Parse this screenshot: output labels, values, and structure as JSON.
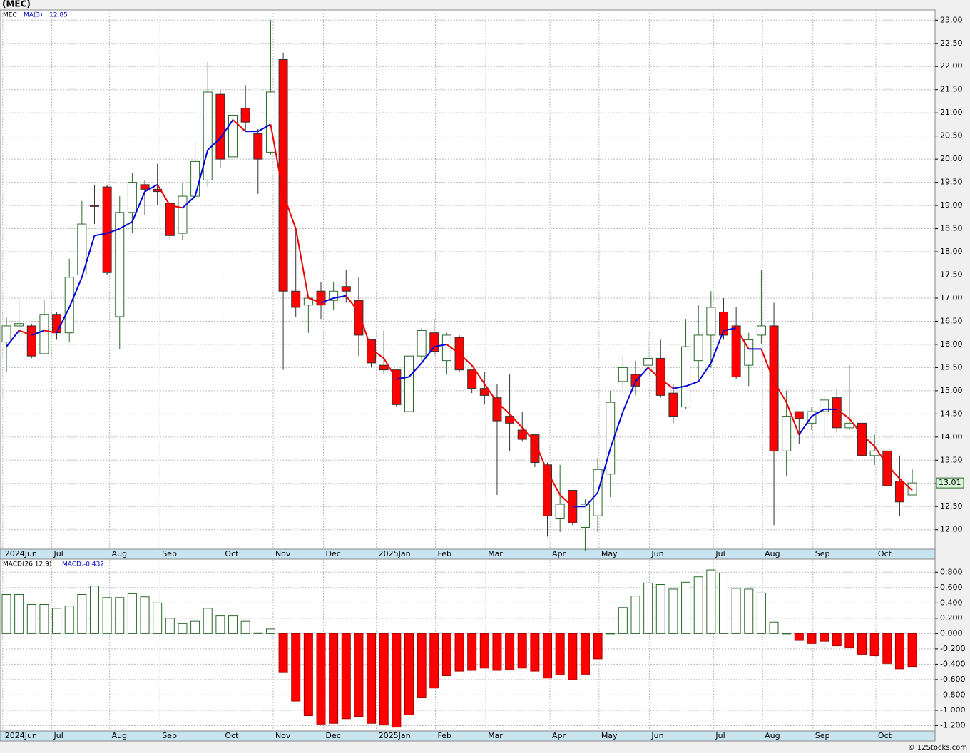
{
  "chart_data": [
    {
      "type": "candlestick",
      "title": "(MEC)",
      "symbol": "MEC",
      "ma_label": "MA(3)",
      "ma_last": "12.85",
      "last_price": "13.01",
      "up_color": "#ffffff",
      "up_edge": "#2a6a2a",
      "down_color": "#ff0000",
      "ma_up_color": "#0000dd",
      "ma_down_color": "#ee0000",
      "open": [
        16.05,
        16.4,
        16.4,
        15.8,
        16.65,
        16.25,
        17.5,
        19.0,
        19.4,
        16.6,
        18.85,
        19.45,
        19.35,
        19.05,
        18.4,
        19.2,
        19.55,
        21.4,
        20.05,
        21.1,
        20.55,
        20.15,
        22.15,
        17.15,
        16.85,
        17.15,
        16.95,
        17.25,
        16.95,
        16.1,
        15.55,
        15.45,
        14.55,
        15.75,
        16.25,
        15.65,
        16.15,
        15.45,
        15.05,
        14.85,
        14.45,
        14.15,
        14.05,
        13.4,
        12.25,
        12.85,
        12.05,
        12.3,
        13.2,
        15.2,
        15.35,
        15.55,
        15.7,
        14.95,
        14.65,
        15.65,
        16.2,
        16.7,
        16.4,
        15.55,
        16.2,
        16.4,
        13.7,
        14.55,
        14.3,
        14.55,
        14.85,
        14.2,
        14.3,
        13.6,
        13.7,
        13.05,
        12.75
      ],
      "high": [
        16.6,
        17.0,
        16.45,
        16.95,
        16.7,
        17.85,
        19.1,
        19.45,
        19.45,
        19.2,
        19.7,
        19.55,
        19.9,
        19.05,
        19.5,
        20.4,
        22.1,
        21.5,
        21.2,
        21.6,
        20.65,
        23.0,
        22.3,
        18.5,
        17.05,
        17.35,
        17.35,
        17.6,
        17.45,
        16.1,
        16.3,
        15.45,
        15.95,
        16.35,
        16.55,
        16.25,
        16.2,
        15.45,
        15.4,
        15.15,
        15.35,
        14.55,
        14.05,
        13.45,
        13.4,
        12.85,
        12.65,
        13.55,
        15.0,
        15.75,
        15.65,
        16.15,
        16.1,
        15.15,
        16.55,
        16.85,
        17.15,
        17.0,
        16.8,
        16.25,
        17.6,
        16.9,
        15.0,
        14.55,
        14.65,
        14.9,
        15.05,
        15.55,
        14.3,
        14.05,
        13.7,
        13.6,
        13.3
      ],
      "low": [
        15.4,
        16.1,
        15.7,
        15.8,
        16.1,
        16.05,
        17.5,
        18.6,
        17.5,
        15.9,
        18.4,
        18.8,
        19.0,
        18.25,
        18.25,
        19.2,
        19.4,
        19.8,
        19.55,
        20.6,
        19.25,
        20.1,
        15.45,
        16.6,
        16.25,
        16.55,
        16.75,
        16.9,
        15.75,
        15.5,
        15.35,
        14.65,
        14.55,
        15.65,
        15.75,
        15.35,
        15.4,
        14.95,
        14.7,
        12.75,
        13.7,
        13.9,
        13.35,
        11.85,
        11.95,
        12.1,
        11.55,
        11.95,
        12.7,
        14.95,
        14.9,
        15.5,
        14.85,
        14.3,
        14.6,
        15.25,
        15.5,
        16.1,
        15.25,
        15.1,
        16.0,
        12.1,
        13.15,
        13.85,
        14.15,
        14.0,
        14.1,
        14.15,
        13.35,
        13.4,
        12.95,
        12.3,
        12.75
      ],
      "close": [
        16.4,
        16.45,
        15.75,
        16.65,
        16.25,
        17.45,
        18.6,
        18.98,
        17.55,
        18.85,
        19.5,
        19.35,
        19.3,
        18.35,
        19.2,
        19.95,
        21.45,
        20.0,
        20.95,
        20.8,
        20.0,
        21.45,
        17.15,
        16.8,
        17.0,
        16.85,
        17.15,
        17.15,
        16.2,
        15.6,
        15.45,
        14.7,
        15.75,
        16.3,
        15.85,
        16.2,
        15.45,
        15.05,
        14.9,
        14.35,
        14.3,
        13.95,
        13.45,
        12.3,
        12.55,
        12.15,
        12.55,
        13.3,
        14.75,
        15.5,
        15.1,
        15.7,
        14.9,
        14.45,
        15.95,
        16.2,
        16.8,
        16.2,
        15.3,
        16.1,
        16.4,
        13.7,
        14.45,
        14.4,
        14.55,
        14.8,
        14.2,
        14.3,
        13.6,
        13.7,
        12.95,
        12.6,
        13.01
      ],
      "ma": [
        15.95,
        16.3,
        16.2,
        16.3,
        16.25,
        16.8,
        17.45,
        18.35,
        18.4,
        18.5,
        18.65,
        19.3,
        19.45,
        19.0,
        18.95,
        19.2,
        20.2,
        20.45,
        20.85,
        20.6,
        20.6,
        20.75,
        19.25,
        18.5,
        17.0,
        16.9,
        17.0,
        17.05,
        16.7,
        15.9,
        15.7,
        15.25,
        15.3,
        15.6,
        15.95,
        16.0,
        15.8,
        15.55,
        15.15,
        14.75,
        14.5,
        14.2,
        13.9,
        13.25,
        12.75,
        12.5,
        12.5,
        12.8,
        13.75,
        14.55,
        15.2,
        15.5,
        15.25,
        15.05,
        15.1,
        15.2,
        15.6,
        16.3,
        16.35,
        15.9,
        15.9,
        15.2,
        14.75,
        14.05,
        14.45,
        14.6,
        14.6,
        14.4,
        14.05,
        13.8,
        13.4,
        13.1,
        12.85
      ],
      "ylim": [
        11.58,
        23.22
      ],
      "yticks": [
        {
          "value": 12,
          "label": "12.00"
        },
        {
          "value": 12.5,
          "label": "12.50"
        },
        {
          "value": 13,
          "label": "13.00"
        },
        {
          "value": 13.5,
          "label": "13.50"
        },
        {
          "value": 14,
          "label": "14.00"
        },
        {
          "value": 14.5,
          "label": "14.50"
        },
        {
          "value": 15,
          "label": "15.00"
        },
        {
          "value": 15.5,
          "label": "15.50"
        },
        {
          "value": 16,
          "label": "16.00"
        },
        {
          "value": 16.5,
          "label": "16.50"
        },
        {
          "value": 17,
          "label": "17.00"
        },
        {
          "value": 17.5,
          "label": "17.50"
        },
        {
          "value": 18,
          "label": "18.00"
        },
        {
          "value": 18.5,
          "label": "18.50"
        },
        {
          "value": 19,
          "label": "19.00"
        },
        {
          "value": 19.5,
          "label": "19.50"
        },
        {
          "value": 20,
          "label": "20.00"
        },
        {
          "value": 20.5,
          "label": "20.50"
        },
        {
          "value": 21,
          "label": "21.00"
        },
        {
          "value": 21.5,
          "label": "21.50"
        },
        {
          "value": 22,
          "label": "22.00"
        },
        {
          "value": 22.5,
          "label": "22.50"
        },
        {
          "value": 23,
          "label": "23.00"
        }
      ],
      "xticks": [
        {
          "value": -0.3,
          "label": "2024Jun"
        },
        {
          "value": 3.6,
          "label": "Jul"
        },
        {
          "value": 8.2,
          "label": "Aug"
        },
        {
          "value": 12.2,
          "label": "Sep"
        },
        {
          "value": 17.2,
          "label": "Oct"
        },
        {
          "value": 21.2,
          "label": "Nov"
        },
        {
          "value": 25.2,
          "label": "Dec"
        },
        {
          "value": 29.4,
          "label": "2025Jan"
        },
        {
          "value": 34.1,
          "label": "Feb"
        },
        {
          "value": 38.1,
          "label": "Mar"
        },
        {
          "value": 43.2,
          "label": "Apr"
        },
        {
          "value": 47.1,
          "label": "May"
        },
        {
          "value": 51.1,
          "label": "Jun"
        },
        {
          "value": 56.2,
          "label": "Jul"
        },
        {
          "value": 60.1,
          "label": "Aug"
        },
        {
          "value": 64.1,
          "label": "Sep"
        },
        {
          "value": 69.1,
          "label": "Oct"
        }
      ],
      "grid": true
    },
    {
      "type": "bar",
      "label": "MACD(26,12,9)",
      "last_label": "MACD:-0.432",
      "pos_color": "#ffffff",
      "pos_edge": "#2a6a2a",
      "neg_color": "#ff0000",
      "values": [
        0.51,
        0.51,
        0.38,
        0.38,
        0.33,
        0.36,
        0.51,
        0.62,
        0.47,
        0.47,
        0.52,
        0.48,
        0.4,
        0.2,
        0.13,
        0.16,
        0.33,
        0.23,
        0.23,
        0.16,
        0.01,
        0.06,
        -0.5,
        -0.88,
        -1.07,
        -1.18,
        -1.17,
        -1.11,
        -1.08,
        -1.17,
        -1.19,
        -1.22,
        -1.06,
        -0.83,
        -0.71,
        -0.55,
        -0.49,
        -0.48,
        -0.45,
        -0.48,
        -0.47,
        -0.45,
        -0.49,
        -0.58,
        -0.54,
        -0.6,
        -0.53,
        -0.33,
        0.0,
        0.34,
        0.49,
        0.66,
        0.64,
        0.58,
        0.67,
        0.74,
        0.83,
        0.79,
        0.59,
        0.58,
        0.53,
        0.15,
        0.0,
        -0.09,
        -0.13,
        -0.1,
        -0.16,
        -0.18,
        -0.27,
        -0.29,
        -0.39,
        -0.46,
        -0.43
      ],
      "ylim": [
        -1.27,
        0.97
      ],
      "yticks": [
        {
          "value": 0.8,
          "label": "0.800"
        },
        {
          "value": 0.6,
          "label": "0.600"
        },
        {
          "value": 0.4,
          "label": "0.400"
        },
        {
          "value": 0.2,
          "label": "0.200"
        },
        {
          "value": 0,
          "label": "0.000"
        },
        {
          "value": -0.2,
          "label": "-0.200"
        },
        {
          "value": -0.4,
          "label": "-0.400"
        },
        {
          "value": -0.6,
          "label": "-0.600"
        },
        {
          "value": -0.8,
          "label": "-0.800"
        },
        {
          "value": -1.0,
          "label": "-1.000"
        },
        {
          "value": -1.2,
          "label": "-1.200"
        }
      ],
      "grid": true
    }
  ],
  "footer": "© 12Stocks.com"
}
